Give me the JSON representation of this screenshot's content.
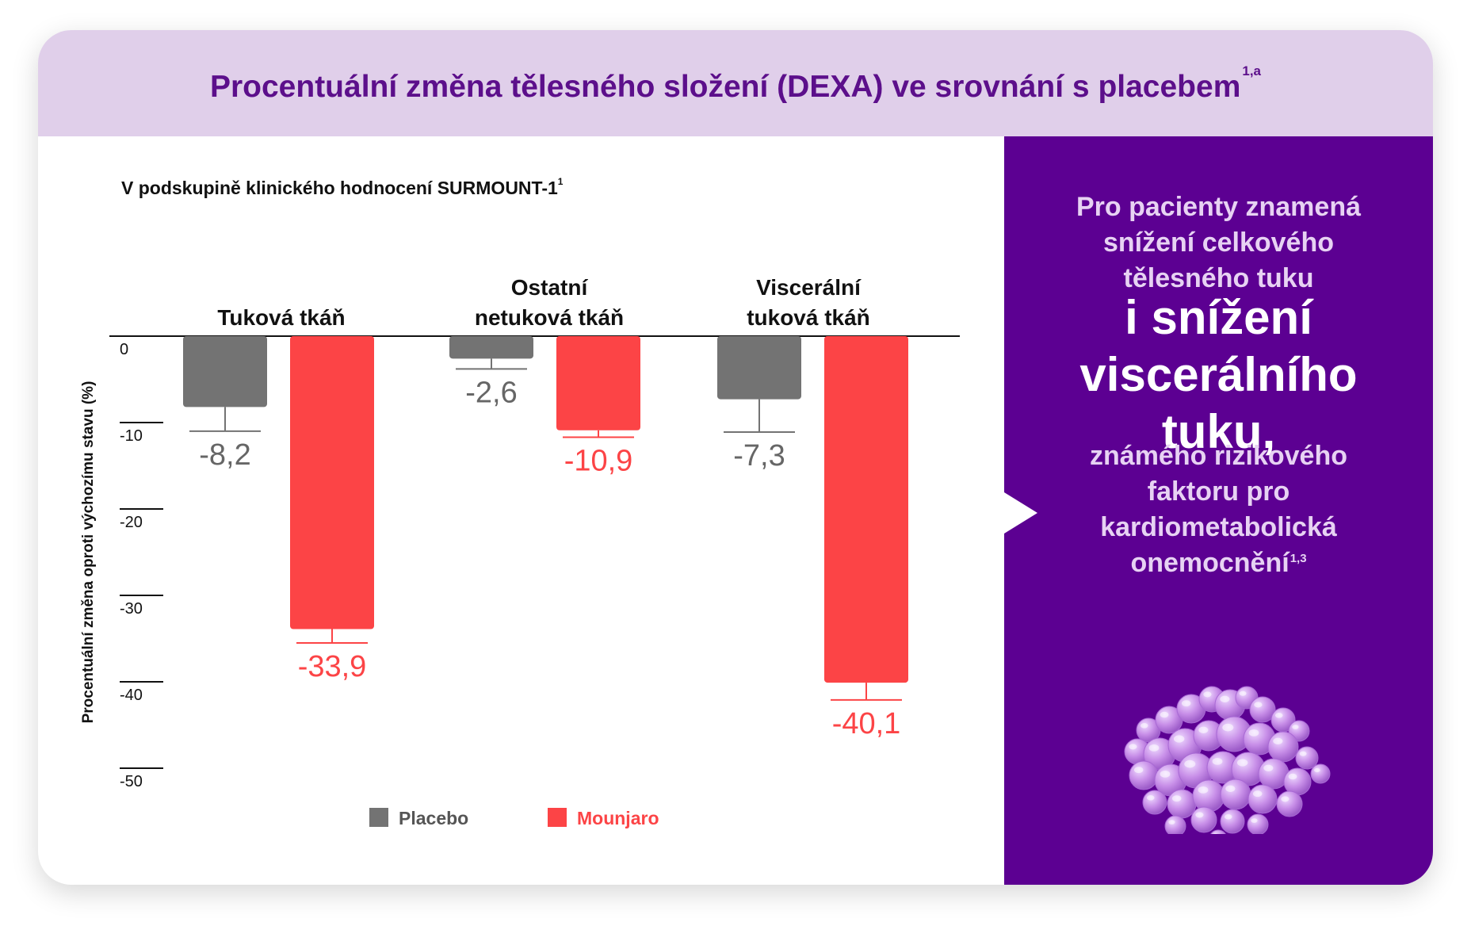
{
  "header": {
    "title": "Procentuální změna tělesného složení (DEXA) ve srovnání s placebem",
    "title_sup": "1,a"
  },
  "subtitle": {
    "text": "V podskupině klinického hodnocení SURMOUNT-1",
    "sup": "1"
  },
  "chart_data": {
    "type": "bar",
    "categories": [
      {
        "lines": [
          "Tuková tkáň"
        ]
      },
      {
        "lines": [
          "Ostatní",
          "netuková tkáň"
        ]
      },
      {
        "lines": [
          "Viscerální",
          "tuková tkáň"
        ]
      }
    ],
    "series": [
      {
        "name": "Placebo",
        "color": "#737373",
        "label_color": "#666666",
        "values": [
          -8.2,
          -2.6,
          -7.3
        ],
        "labels": [
          "-8,2",
          "-2,6",
          "-7,3"
        ],
        "err": [
          2.8,
          1.2,
          3.8
        ]
      },
      {
        "name": "Mounjaro",
        "color": "#fc4446",
        "label_color": "#fc4446",
        "values": [
          -33.9,
          -10.9,
          -40.1
        ],
        "labels": [
          "-33,9",
          "-10,9",
          "-40,1"
        ],
        "err": [
          1.6,
          0.8,
          2.0
        ]
      }
    ],
    "ylabel": "Procentuální změna oproti výchozímu stavu (%)",
    "ylim": [
      -50,
      0
    ],
    "yticks": [
      0,
      -10,
      -20,
      -30,
      -40,
      -50
    ],
    "ytick_labels": [
      "0",
      "-10",
      "-20",
      "-30",
      "-40",
      "-50"
    ],
    "legend_position": "bottom"
  },
  "right_panel": {
    "lead_lines": [
      "Pro pacienty znamená",
      "snížení celkového",
      "tělesného tuku"
    ],
    "big_lines": [
      "i snížení",
      "viscerálního",
      "tuku,"
    ],
    "tail_lines": [
      "známého rizikového",
      "faktoru pro",
      "kardiometabolická",
      "onemocnění"
    ],
    "tail_sup": "1,3",
    "icon": "visceral-fat-cluster-icon"
  }
}
